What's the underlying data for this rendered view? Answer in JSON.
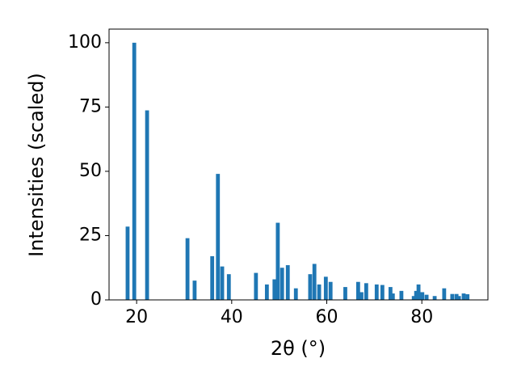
{
  "chart_data": {
    "type": "bar",
    "x_label": "2θ (°)",
    "y_label": "Intensities (scaled)",
    "x": [
      18.1,
      19.5,
      22.2,
      30.7,
      32.2,
      35.9,
      37.1,
      38.0,
      39.4,
      45.1,
      47.4,
      49.0,
      49.7,
      50.6,
      51.8,
      53.5,
      56.5,
      57.4,
      58.4,
      59.8,
      60.8,
      63.9,
      66.6,
      67.3,
      68.3,
      70.5,
      71.7,
      73.4,
      73.9,
      75.7,
      78.3,
      78.8,
      79.3,
      80.1,
      81.0,
      82.7,
      84.7,
      86.4,
      87.3,
      87.8,
      88.8,
      89.6
    ],
    "values": [
      28.5,
      100,
      73.7,
      24,
      7.5,
      17,
      49,
      13,
      10,
      10.5,
      6,
      8,
      30,
      12.5,
      13.5,
      4.5,
      10,
      14,
      6,
      9,
      7,
      5,
      7,
      3,
      6.5,
      6,
      5.8,
      5,
      2.5,
      3.5,
      1.5,
      3.5,
      6,
      3,
      2,
      1.5,
      4.5,
      2.3,
      2.3,
      1.5,
      2.5,
      2.2
    ],
    "color": "#1f77b4",
    "xlim": [
      14.2,
      93.9
    ],
    "xticks": [
      20,
      40,
      60,
      80
    ],
    "ylim": [
      0,
      105.3
    ],
    "yticks": [
      0,
      25,
      50,
      75,
      100
    ]
  }
}
